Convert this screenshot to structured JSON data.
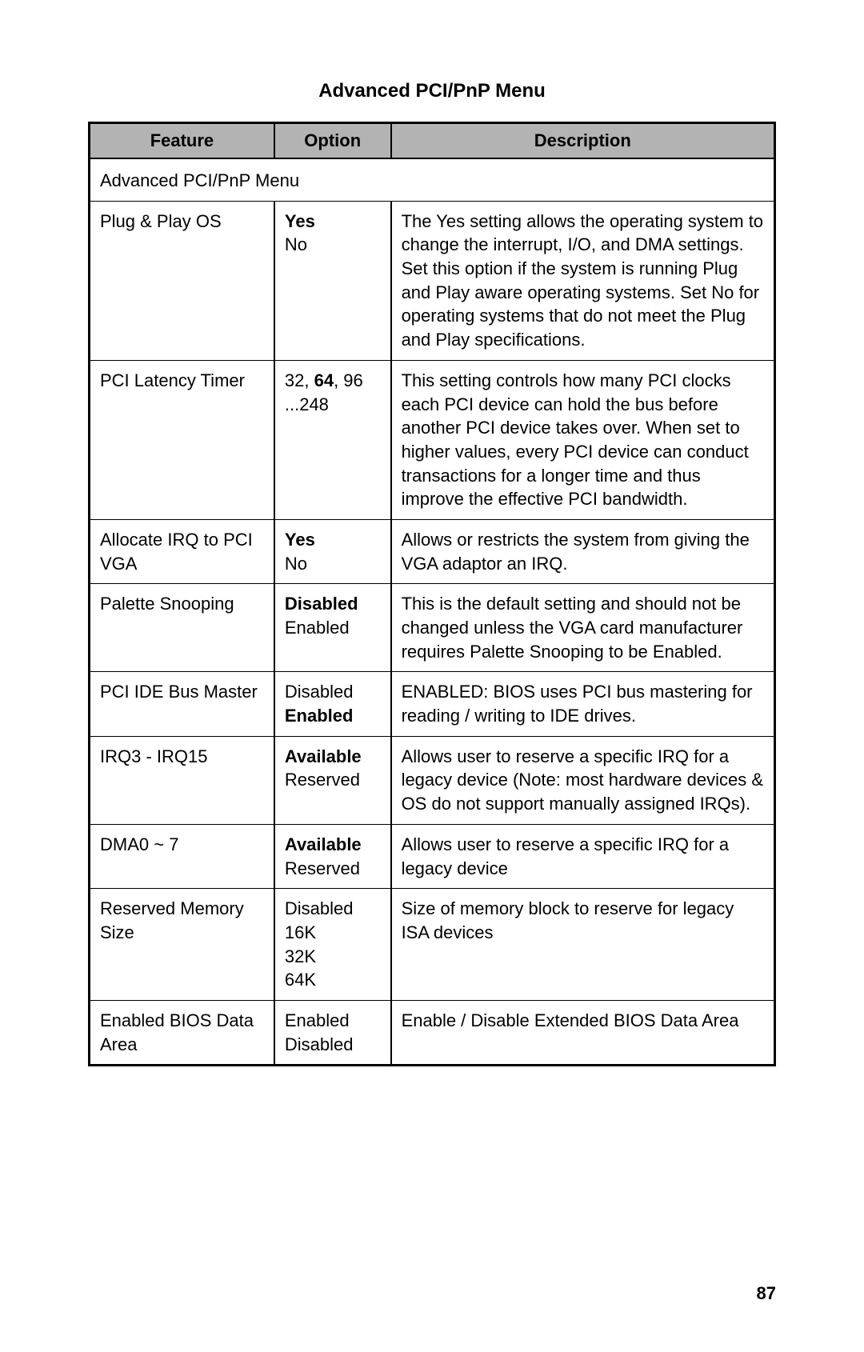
{
  "title": "Advanced PCI/PnP Menu",
  "page_number": "87",
  "columns": {
    "feature": "Feature",
    "option": "Option",
    "description": "Description"
  },
  "section_label": "Advanced PCI/PnP Menu",
  "rows": [
    {
      "feature": "Plug & Play OS",
      "options": [
        {
          "text": "Yes",
          "bold": true
        },
        {
          "text": "No",
          "bold": false
        }
      ],
      "description": "The Yes setting allows the operating system to change the interrupt, I/O, and DMA settings. Set this option if the system is running Plug and Play aware operating systems. Set No for operating systems that do not meet the Plug and Play specifications."
    },
    {
      "feature": "PCI Latency Timer",
      "options": [
        {
          "segments": [
            {
              "text": "32, ",
              "bold": false
            },
            {
              "text": "64",
              "bold": true
            },
            {
              "text": ", 96",
              "bold": false
            }
          ]
        },
        {
          "text": "...248",
          "bold": false
        }
      ],
      "description": "This setting controls how many PCI clocks each PCI device can hold the bus before another PCI device takes over. When set to higher values, every PCI device can conduct transactions for a longer time and thus improve the effective PCI bandwidth."
    },
    {
      "feature": "Allocate IRQ to PCI VGA",
      "options": [
        {
          "text": "Yes",
          "bold": true
        },
        {
          "text": "No",
          "bold": false
        }
      ],
      "description": "Allows or restricts the system from giving the VGA adaptor an IRQ."
    },
    {
      "feature": "Palette Snooping",
      "options": [
        {
          "text": "Disabled",
          "bold": true
        },
        {
          "text": "Enabled",
          "bold": false
        }
      ],
      "description": "This is the default setting and should not be changed unless the VGA card manufacturer requires Palette Snooping to be Enabled."
    },
    {
      "feature": "PCI IDE Bus Master",
      "options": [
        {
          "text": "Disabled",
          "bold": false
        },
        {
          "text": "Enabled",
          "bold": true
        }
      ],
      "description": "ENABLED: BIOS uses PCI bus mastering for reading / writing to IDE drives."
    },
    {
      "feature": "IRQ3 - IRQ15",
      "options": [
        {
          "text": "Available",
          "bold": true
        },
        {
          "text": "Reserved",
          "bold": false
        }
      ],
      "description": "Allows user to reserve a specific IRQ for a legacy device (Note: most hardware devices & OS do not support manually assigned IRQs)."
    },
    {
      "feature": "DMA0 ~ 7",
      "options": [
        {
          "text": "Available",
          "bold": true
        },
        {
          "text": "Reserved",
          "bold": false
        }
      ],
      "description": "Allows user to reserve a specific IRQ for a legacy device"
    },
    {
      "feature": "Reserved Memory Size",
      "options": [
        {
          "text": "Disabled",
          "bold": false
        },
        {
          "text": "16K",
          "bold": false
        },
        {
          "text": "32K",
          "bold": false
        },
        {
          "text": "64K",
          "bold": false
        }
      ],
      "description": "Size of memory block to reserve for legacy ISA devices"
    },
    {
      "feature": "Enabled BIOS Data Area",
      "options": [
        {
          "text": "Enabled",
          "bold": false
        },
        {
          "text": "Disabled",
          "bold": false
        }
      ],
      "description": "Enable / Disable Extended BIOS Data Area"
    }
  ]
}
